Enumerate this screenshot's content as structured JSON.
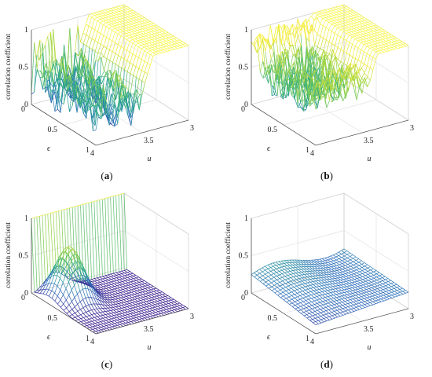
{
  "chart_data": [
    {
      "type": "surface",
      "panel_label": "(a)",
      "panel_letter": "a",
      "ylabel": "correlation coefficient",
      "xlabel": "u",
      "elabel": "ϵ",
      "u_ticks": [
        "4",
        "3.5",
        "3"
      ],
      "e_ticks": [
        "0",
        "0.5",
        "1"
      ],
      "z_ticks": [
        "0",
        "0.5",
        "1"
      ],
      "u_range": [
        3,
        4
      ],
      "e_range": [
        0,
        1
      ],
      "z_range": [
        0,
        1
      ],
      "surface_pattern": "noisy-full",
      "colormap": [
        "#3b1f8f",
        "#2e6fbd",
        "#26a98c",
        "#8ed14a",
        "#f0e62a",
        "#f7f74a"
      ]
    },
    {
      "type": "surface",
      "panel_label": "(b)",
      "panel_letter": "b",
      "ylabel": "correlation coefficient",
      "xlabel": "u",
      "elabel": "ϵ",
      "u_ticks": [
        "4",
        "3.5",
        "3"
      ],
      "e_ticks": [
        "0",
        "0.5",
        "1"
      ],
      "z_ticks": [
        "0",
        "0.5",
        "1"
      ],
      "u_range": [
        3,
        4
      ],
      "e_range": [
        0,
        1
      ],
      "z_range": [
        0,
        1
      ],
      "surface_pattern": "noisy-mid",
      "colormap": [
        "#3b1f8f",
        "#2e6fbd",
        "#26a98c",
        "#8ed14a",
        "#f0e62a",
        "#f7f74a"
      ]
    },
    {
      "type": "surface",
      "panel_label": "(c)",
      "panel_letter": "c",
      "ylabel": "correlation coefficient",
      "xlabel": "u",
      "elabel": "ϵ",
      "u_ticks": [
        "4",
        "3.5",
        "3"
      ],
      "e_ticks": [
        "0",
        "0.5",
        "1"
      ],
      "z_ticks": [
        "0",
        "0.5",
        "1"
      ],
      "u_range": [
        3,
        4
      ],
      "e_range": [
        0,
        1
      ],
      "z_range": [
        0,
        1
      ],
      "surface_pattern": "bump-flat",
      "colormap": [
        "#3b1f8f",
        "#2e6fbd",
        "#26a98c",
        "#8ed14a",
        "#f0e62a",
        "#f7f74a"
      ]
    },
    {
      "type": "surface",
      "panel_label": "(d)",
      "panel_letter": "d",
      "ylabel": "correlation coefficient",
      "xlabel": "u",
      "elabel": "ϵ",
      "u_ticks": [
        "4",
        "3.5",
        "3"
      ],
      "e_ticks": [
        "0",
        "0.5",
        "1"
      ],
      "z_ticks": [
        "0",
        "0.5",
        "1"
      ],
      "u_range": [
        3,
        4
      ],
      "e_range": [
        0,
        1
      ],
      "z_range": [
        0,
        1
      ],
      "surface_pattern": "low-wave",
      "colormap": [
        "#3b1f8f",
        "#2e6fbd",
        "#26a98c",
        "#8ed14a",
        "#f0e62a",
        "#f7f74a"
      ]
    }
  ]
}
